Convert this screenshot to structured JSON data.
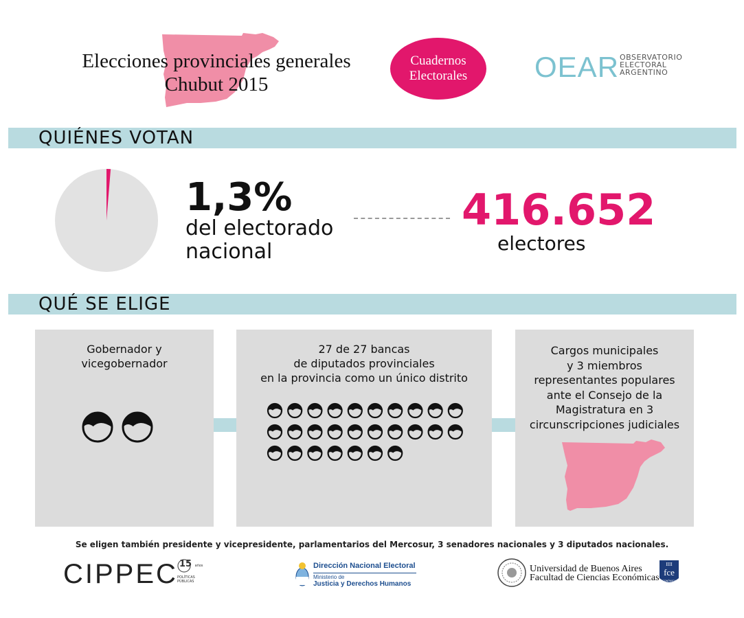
{
  "header": {
    "title_line1": "Elecciones provinciales generales",
    "title_line2": "Chubut 2015",
    "badge_line1": "Cuadernos",
    "badge_line2": "Electorales",
    "oear_logo": "OEAR",
    "oear_line1": "OBSERVATORIO",
    "oear_line2": "ELECTORAL",
    "oear_line3": "ARGENTINO",
    "map_color": "#f08ea7",
    "badge_color": "#e2176c"
  },
  "voters_section": {
    "title": "QUIÉNES VOTAN",
    "share_value": 1.3,
    "share_label": "1,3%",
    "share_caption_line1": "del electorado",
    "share_caption_line2": "nacional",
    "count": "416.652",
    "count_label": "electores",
    "accent_color": "#e2176c",
    "pie_bg_color": "#e2e2e2"
  },
  "elected_section": {
    "title": "QUÉ SE ELIGE",
    "boxes": [
      {
        "text": "Gobernador y\nvicegobernador",
        "seats": 2
      },
      {
        "text": "27 de 27 bancas\nde diputados provinciales\nen la provincia como un único distrito",
        "seats": 27
      },
      {
        "text": "Cargos municipales\ny 3 miembros\nrepresentantes populares\nante el Consejo de la\nMagistratura en 3\ncircunscripciones judiciales",
        "icon": "chubut-map-icon"
      }
    ]
  },
  "footnote": "Se eligen también presidente y vicepresidente, parlamentarios del Mercosur, 3 senadores nacionales y 3 diputados nacionales.",
  "footer": {
    "cippec": "CIPPEC",
    "cippec_years": "15",
    "cippec_years_label": "años",
    "cippec_tag1": "POLÍTICAS",
    "cippec_tag2": "PÚBLICAS",
    "dne_title": "Dirección Nacional Electoral",
    "dne_ministry": "Ministerio de",
    "dne_ministry2": "Justicia y Derechos Humanos",
    "uba_line1": "Universidad de Buenos Aires",
    "uba_line2": "Facultad de Ciencias Económicas",
    "fce": "fce",
    "fce_roman": "IIII",
    "fce_bottom": "ECONÓMICAS"
  }
}
